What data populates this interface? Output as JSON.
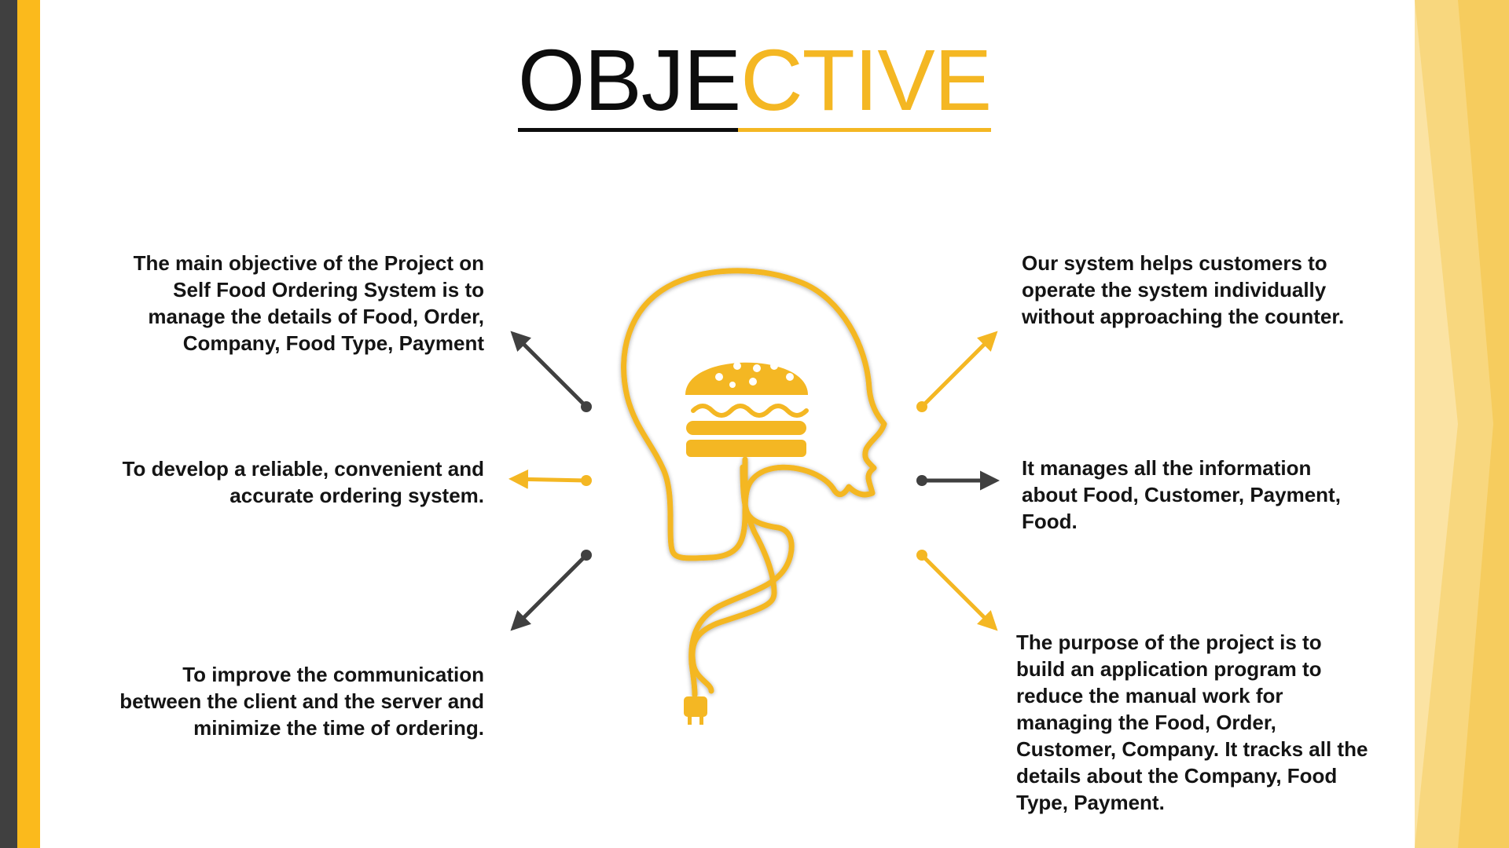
{
  "title": {
    "part1": "OBJE",
    "part2": "CTIVE"
  },
  "colors": {
    "accent": "#F4B723",
    "dark": "#404040",
    "edge": "#FBBA1C"
  },
  "center": {
    "icon": "head-with-burger-icon",
    "plug": "plug-icon"
  },
  "left": [
    {
      "text": "The main objective of the Project on Self  Food Ordering System is to manage the details of Food, Order, Company, Food Type, Payment"
    },
    {
      "text": "To develop a reliable, convenient and accurate ordering system."
    },
    {
      "text": "To improve the communication between the client and the server and minimize the time of ordering."
    }
  ],
  "right": [
    {
      "text": "Our system helps customers to operate the system individually without approaching the counter."
    },
    {
      "text": "It manages all the information about Food, Customer, Payment, Food."
    },
    {
      "text": "The purpose of the project is to build an application program to reduce the manual work for managing the Food, Order, Customer, Company. It tracks all the details about the Company, Food Type, Payment."
    }
  ]
}
